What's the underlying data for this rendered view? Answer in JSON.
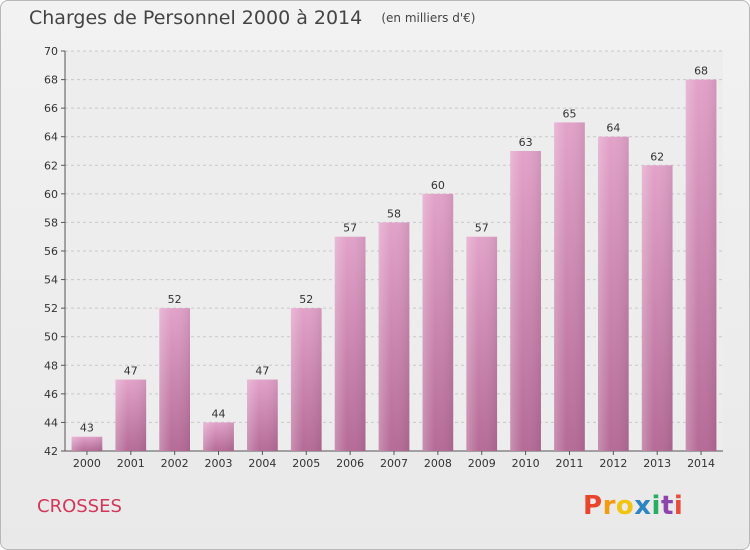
{
  "header": {
    "title": "Charges de Personnel 2000 à 2014",
    "subtitle": "(en milliers d'€)"
  },
  "footer": {
    "commune": "CROSSES",
    "logo": "Proxiti"
  },
  "colors": {
    "bar_top": "#e2a2c9",
    "bar_bottom": "#b56b97",
    "title": "#444444",
    "commune": "#d2365a",
    "logo_letters": [
      "#e8452c",
      "#f39c12",
      "#f1c40f",
      "#2e86c1",
      "#27ae60",
      "#8e44ad",
      "#e74c3c"
    ]
  },
  "chart_data": {
    "type": "bar",
    "title": "Charges de Personnel 2000 à 2014",
    "subtitle": "(en milliers d'€)",
    "xlabel": "",
    "ylabel": "",
    "categories": [
      "2000",
      "2001",
      "2002",
      "2003",
      "2004",
      "2005",
      "2006",
      "2007",
      "2008",
      "2009",
      "2010",
      "2011",
      "2012",
      "2013",
      "2014"
    ],
    "values": [
      43,
      47,
      52,
      44,
      47,
      52,
      57,
      58,
      60,
      57,
      63,
      65,
      64,
      62,
      68
    ],
    "ylim": [
      42,
      70
    ],
    "yticks": [
      42,
      44,
      46,
      48,
      50,
      52,
      54,
      56,
      58,
      60,
      62,
      64,
      66,
      68,
      70
    ],
    "grid": true,
    "legend": "none"
  }
}
